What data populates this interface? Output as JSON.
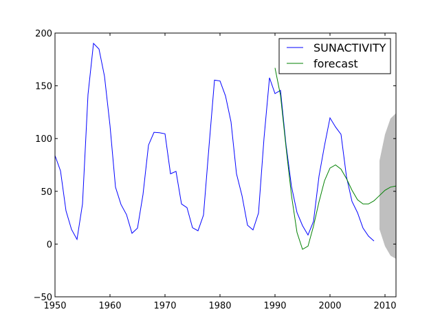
{
  "chart_data": {
    "type": "line",
    "title": "",
    "xlabel": "",
    "ylabel": "",
    "xlim": [
      1950,
      2012
    ],
    "ylim": [
      -50,
      200
    ],
    "xticks": [
      "1950",
      "1960",
      "1970",
      "1980",
      "1990",
      "2000",
      "2010"
    ],
    "yticks": [
      "-50",
      "0",
      "50",
      "100",
      "150",
      "200"
    ],
    "grid": false,
    "legend_position": "top-right",
    "series": [
      {
        "name": "SUNACTIVITY",
        "color": "#0000ff",
        "x": [
          1950,
          1951,
          1952,
          1953,
          1954,
          1955,
          1956,
          1957,
          1958,
          1959,
          1960,
          1961,
          1962,
          1963,
          1964,
          1965,
          1966,
          1967,
          1968,
          1969,
          1970,
          1971,
          1972,
          1973,
          1974,
          1975,
          1976,
          1977,
          1978,
          1979,
          1980,
          1981,
          1982,
          1983,
          1984,
          1985,
          1986,
          1987,
          1988,
          1989,
          1990,
          1991,
          1992,
          1993,
          1994,
          1995,
          1996,
          1997,
          1998,
          1999,
          2000,
          2001,
          2002,
          2003,
          2004,
          2005,
          2006,
          2007,
          2008
        ],
        "y": [
          83.9,
          69.4,
          31.5,
          13.9,
          4.4,
          38.0,
          141.7,
          190.2,
          184.8,
          159.0,
          112.3,
          53.9,
          37.5,
          27.9,
          10.2,
          15.1,
          47.0,
          93.8,
          105.9,
          105.5,
          104.5,
          66.6,
          68.9,
          38.0,
          34.5,
          15.5,
          12.6,
          27.5,
          92.5,
          155.4,
          154.6,
          140.4,
          115.9,
          66.6,
          45.9,
          17.9,
          13.4,
          29.4,
          100.2,
          157.6,
          142.6,
          145.7,
          94.3,
          54.6,
          29.9,
          17.5,
          8.6,
          21.5,
          64.3,
          93.3,
          119.6,
          111.0,
          104.0,
          63.7,
          40.4,
          29.8,
          15.2,
          7.5,
          2.9
        ]
      },
      {
        "name": "forecast",
        "color": "#008000",
        "x": [
          1990,
          1991,
          1992,
          1993,
          1994,
          1995,
          1996,
          1997,
          1998,
          1999,
          2000,
          2001,
          2002,
          2003,
          2004,
          2005,
          2006,
          2007,
          2008,
          2009,
          2010,
          2011,
          2012
        ],
        "y": [
          167,
          141,
          92,
          46,
          11,
          -5,
          -2,
          17,
          40,
          60,
          72,
          75,
          71,
          62,
          51,
          42,
          38,
          38,
          41,
          46,
          51,
          54,
          55
        ]
      }
    ],
    "confidence_band": {
      "color": "#bfbfbf",
      "x": [
        2009,
        2010,
        2011,
        2012
      ],
      "upper": [
        79,
        104,
        119,
        124
      ],
      "lower": [
        14,
        -2,
        -11,
        -14
      ]
    }
  }
}
